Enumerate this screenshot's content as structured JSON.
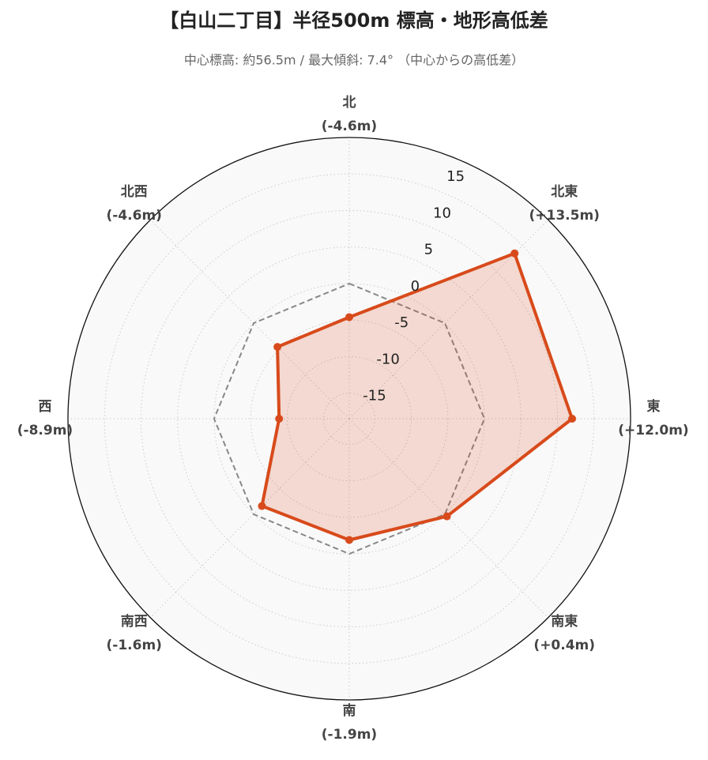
{
  "chart_data": {
    "type": "radar",
    "title": "【白山二丁目】半径500m 標高・地形高低差",
    "subtitle": "中心標高: 約56.5m / 最大傾斜: 7.4° （中心からの高低差）",
    "categories": [
      "北",
      "北東",
      "東",
      "南東",
      "南",
      "南西",
      "西",
      "北西"
    ],
    "values": [
      -4.6,
      13.5,
      12.0,
      0.4,
      -1.9,
      -1.6,
      -8.9,
      -4.6
    ],
    "value_labels": [
      "(-4.6m)",
      "(+13.5m)",
      "(+12.0m)",
      "(+0.4m)",
      "(-1.9m)",
      "(-1.6m)",
      "(-8.9m)",
      "(-4.6m)"
    ],
    "color": "#d84a1b",
    "reference_line": 0,
    "ylim": [
      -18.5,
      20
    ],
    "yticks": [
      -15,
      -10,
      -5,
      0,
      5,
      10,
      15
    ],
    "grid": true
  }
}
